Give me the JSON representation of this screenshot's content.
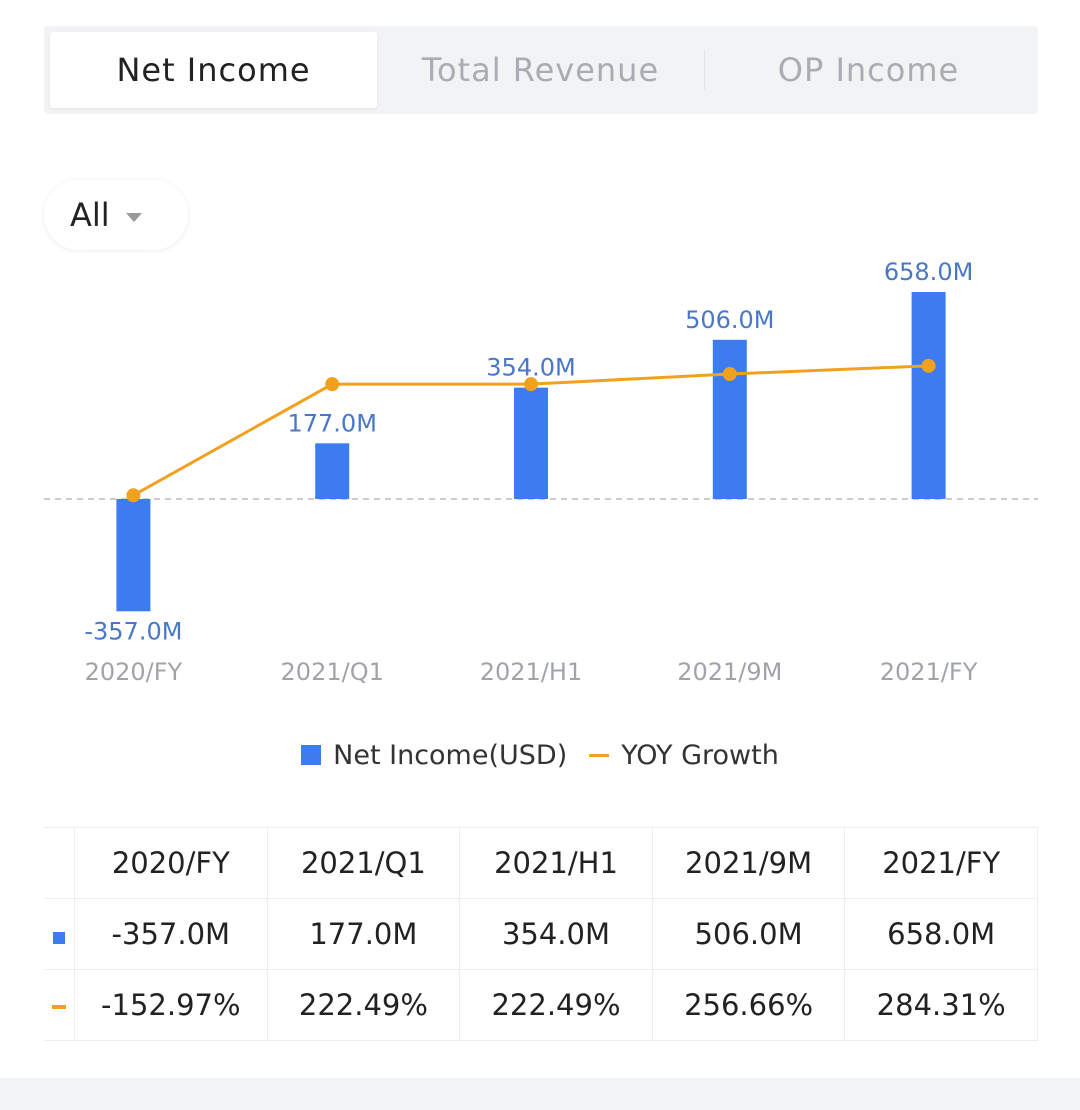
{
  "tabs": [
    {
      "label": "Net Income",
      "active": true
    },
    {
      "label": "Total Revenue",
      "active": false
    },
    {
      "label": "OP Income",
      "active": false
    }
  ],
  "period_selector": {
    "label": "All"
  },
  "chart_data": {
    "type": "bar+line",
    "categories": [
      "2020/FY",
      "2021/Q1",
      "2021/H1",
      "2021/9M",
      "2021/FY"
    ],
    "series": [
      {
        "name": "Net Income(USD)",
        "type": "bar",
        "values": [
          -357.0,
          177.0,
          354.0,
          506.0,
          658.0
        ],
        "unit": "M",
        "labels": [
          "-357.0M",
          "177.0M",
          "354.0M",
          "506.0M",
          "658.0M"
        ],
        "color": "#3d7cf0"
      },
      {
        "name": "YOY Growth",
        "type": "line",
        "values": [
          -152.97,
          222.49,
          222.49,
          256.66,
          284.31
        ],
        "unit": "%",
        "color": "#f2a11e"
      }
    ],
    "zero_line": "dashed",
    "legend_position": "bottom"
  },
  "table": {
    "headers": [
      "2020/FY",
      "2021/Q1",
      "2021/H1",
      "2021/9M",
      "2021/FY"
    ],
    "rows": [
      {
        "marker": "bar",
        "cells": [
          "-357.0M",
          "177.0M",
          "354.0M",
          "506.0M",
          "658.0M"
        ]
      },
      {
        "marker": "line",
        "cells": [
          "-152.97%",
          "222.49%",
          "222.49%",
          "256.66%",
          "284.31%"
        ]
      }
    ]
  }
}
